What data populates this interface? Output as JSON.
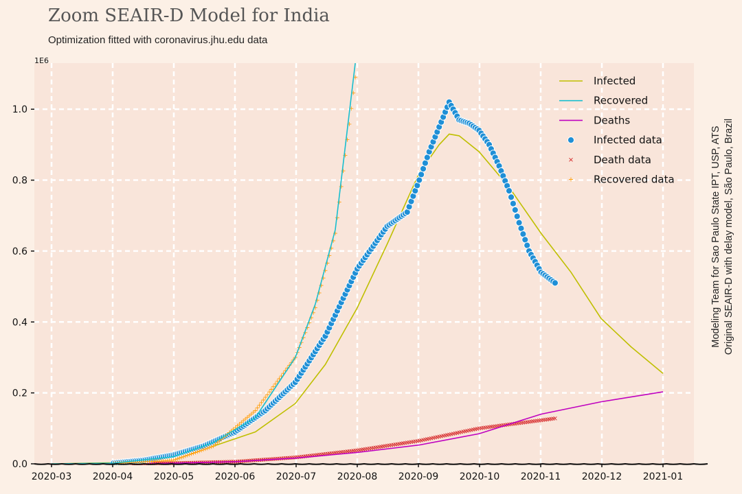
{
  "chart_data": {
    "type": "line",
    "title": "Zoom SEAIR-D Model for India",
    "subtitle": "Optimization fitted with coronavirus.jhu.edu data",
    "side_text": [
      "Modeling Team for Sao Paulo State IPT, USP, ATS",
      "Original SEAIR-D with delay model, São Paulo, Brazil"
    ],
    "y_exponent_label": "1E6",
    "x_tick_labels": [
      "2020-03",
      "2020-04",
      "2020-05",
      "2020-06",
      "2020-07",
      "2020-08",
      "2020-09",
      "2020-10",
      "2020-11",
      "2020-12",
      "2021-01"
    ],
    "y_tick_labels": [
      "0.0",
      "0.2",
      "0.4",
      "0.6",
      "0.8",
      "1.0"
    ],
    "ylim": [
      0,
      1.13
    ],
    "grid": true,
    "legend_position": "top-right",
    "colors": {
      "background": "#fcf0e6",
      "plot_area": "#f9e5da",
      "grid": "#ffffff",
      "infected": "#bfbf00",
      "recovered": "#17becf",
      "deaths": "#bf00bf",
      "infected_data": "#1f8fd6",
      "death_data": "#d62728",
      "recovered_data": "#ff9f0e"
    },
    "series": [
      {
        "name": "Infected",
        "kind": "line",
        "color": "#bfbf00",
        "points": [
          [
            "2020-03-01",
            0
          ],
          [
            "2020-04-01",
            0.003
          ],
          [
            "2020-05-01",
            0.025
          ],
          [
            "2020-05-21",
            0.05
          ],
          [
            "2020-06-11",
            0.09
          ],
          [
            "2020-07-01",
            0.17
          ],
          [
            "2020-07-16",
            0.28
          ],
          [
            "2020-08-01",
            0.44
          ],
          [
            "2020-08-16",
            0.62
          ],
          [
            "2020-09-01",
            0.82
          ],
          [
            "2020-09-11",
            0.9
          ],
          [
            "2020-09-16",
            0.93
          ],
          [
            "2020-09-21",
            0.925
          ],
          [
            "2020-10-01",
            0.88
          ],
          [
            "2020-10-16",
            0.78
          ],
          [
            "2020-11-01",
            0.65
          ],
          [
            "2020-11-16",
            0.54
          ],
          [
            "2020-12-01",
            0.41
          ],
          [
            "2020-12-16",
            0.33
          ],
          [
            "2021-01-01",
            0.255
          ]
        ]
      },
      {
        "name": "Recovered",
        "kind": "line",
        "color": "#17becf",
        "points": [
          [
            "2020-03-01",
            0
          ],
          [
            "2020-04-01",
            0.002
          ],
          [
            "2020-05-01",
            0.02
          ],
          [
            "2020-05-21",
            0.06
          ],
          [
            "2020-06-11",
            0.13
          ],
          [
            "2020-07-01",
            0.3
          ],
          [
            "2020-07-11",
            0.45
          ],
          [
            "2020-07-21",
            0.66
          ],
          [
            "2020-07-31",
            1.13
          ]
        ]
      },
      {
        "name": "Deaths",
        "kind": "line",
        "color": "#bf00bf",
        "points": [
          [
            "2020-03-01",
            0
          ],
          [
            "2020-05-01",
            0.002
          ],
          [
            "2020-06-01",
            0.006
          ],
          [
            "2020-07-01",
            0.016
          ],
          [
            "2020-08-01",
            0.032
          ],
          [
            "2020-09-01",
            0.053
          ],
          [
            "2020-10-01",
            0.085
          ],
          [
            "2020-11-01",
            0.14
          ],
          [
            "2020-12-01",
            0.175
          ],
          [
            "2021-01-01",
            0.203
          ]
        ]
      },
      {
        "name": "Infected data",
        "kind": "scatter",
        "marker": "circle",
        "color": "#1f8fd6",
        "points": [
          [
            "2020-04-01",
            0.002
          ],
          [
            "2020-04-16",
            0.01
          ],
          [
            "2020-05-01",
            0.025
          ],
          [
            "2020-05-16",
            0.05
          ],
          [
            "2020-06-01",
            0.09
          ],
          [
            "2020-06-16",
            0.15
          ],
          [
            "2020-07-01",
            0.23
          ],
          [
            "2020-07-16",
            0.36
          ],
          [
            "2020-08-01",
            0.55
          ],
          [
            "2020-08-16",
            0.67
          ],
          [
            "2020-08-21",
            0.69
          ],
          [
            "2020-08-26",
            0.71
          ],
          [
            "2020-09-01",
            0.8
          ],
          [
            "2020-09-06",
            0.88
          ],
          [
            "2020-09-11",
            0.95
          ],
          [
            "2020-09-16",
            1.02
          ],
          [
            "2020-09-21",
            0.97
          ],
          [
            "2020-09-26",
            0.96
          ],
          [
            "2020-10-01",
            0.94
          ],
          [
            "2020-10-06",
            0.9
          ],
          [
            "2020-10-11",
            0.84
          ],
          [
            "2020-10-16",
            0.77
          ],
          [
            "2020-10-21",
            0.68
          ],
          [
            "2020-10-26",
            0.6
          ],
          [
            "2020-11-01",
            0.54
          ],
          [
            "2020-11-08",
            0.51
          ]
        ]
      },
      {
        "name": "Death data",
        "kind": "scatter",
        "marker": "x",
        "color": "#d62728",
        "points": [
          [
            "2020-04-01",
            0
          ],
          [
            "2020-05-01",
            0.002
          ],
          [
            "2020-06-01",
            0.006
          ],
          [
            "2020-07-01",
            0.018
          ],
          [
            "2020-08-01",
            0.038
          ],
          [
            "2020-09-01",
            0.065
          ],
          [
            "2020-10-01",
            0.1
          ],
          [
            "2020-11-08",
            0.128
          ]
        ]
      },
      {
        "name": "Recovered data",
        "kind": "scatter",
        "marker": "plus",
        "color": "#ff9f0e",
        "points": [
          [
            "2020-04-01",
            0.001
          ],
          [
            "2020-05-01",
            0.01
          ],
          [
            "2020-05-21",
            0.05
          ],
          [
            "2020-06-11",
            0.15
          ],
          [
            "2020-07-01",
            0.3
          ],
          [
            "2020-07-11",
            0.44
          ],
          [
            "2020-07-21",
            0.65
          ],
          [
            "2020-07-31",
            1.09
          ]
        ]
      }
    ]
  }
}
